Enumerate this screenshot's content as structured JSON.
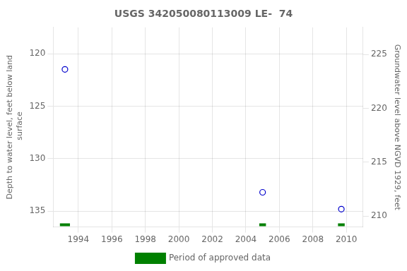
{
  "chart_data": {
    "type": "scatter",
    "title": "USGS 342050080113009 LE-  74",
    "ylabel": "Depth to water level, feet below land\n surface",
    "y2label": "Groundwater level above NGVD 1929, feet",
    "xlim": [
      1992.5,
      2011.0
    ],
    "xticks": [
      1994,
      1996,
      1998,
      2000,
      2002,
      2004,
      2006,
      2008,
      2010
    ],
    "ylim": [
      136.5,
      117.5
    ],
    "yticks": [
      120,
      125,
      130,
      135
    ],
    "y2lim": [
      209.0,
      227.5
    ],
    "y2ticks": [
      225,
      220,
      215,
      210
    ],
    "grid": true,
    "legend": "bottom",
    "series": [
      {
        "color": "#0000cc",
        "marker": "circle",
        "x": [
          1993.2,
          2005.0,
          2009.7
        ],
        "values": [
          121.5,
          133.2,
          134.8
        ]
      },
      {
        "name": "Period of approved data",
        "type": "line",
        "color": "#008000",
        "x": [
          1992.9,
          1993.5,
          null,
          2004.8,
          2005.2,
          null,
          2009.5,
          2009.9
        ],
        "values": [
          136.3,
          136.3,
          null,
          136.3,
          136.3,
          null,
          136.3,
          136.3
        ]
      }
    ]
  }
}
